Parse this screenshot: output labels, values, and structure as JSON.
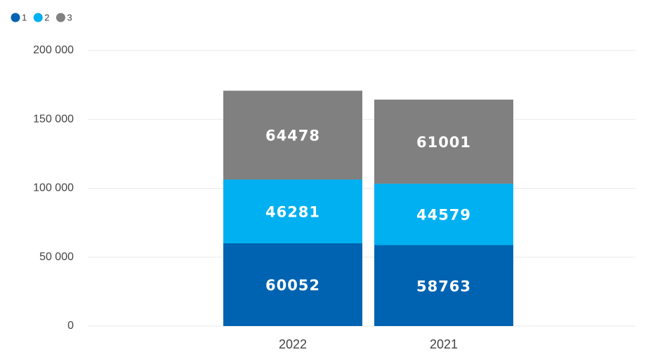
{
  "chart_data": {
    "type": "stacked_bar",
    "categories": [
      "2022",
      "2021"
    ],
    "series": [
      {
        "name": "1",
        "color": "#0063b1",
        "values": [
          60052,
          58763
        ]
      },
      {
        "name": "2",
        "color": "#00b0f0",
        "values": [
          46281,
          44579
        ]
      },
      {
        "name": "3",
        "color": "#808080",
        "values": [
          64478,
          61001
        ]
      }
    ],
    "ylim": [
      0,
      200000
    ],
    "yticks": [
      0,
      {
        "value": 50000,
        "label": "50 000"
      },
      {
        "value": 100000,
        "label": "100 000"
      },
      {
        "value": 150000,
        "label": "150 000"
      },
      {
        "value": 200000,
        "label": "200 000"
      }
    ],
    "grid": true,
    "legend": "top-left"
  }
}
